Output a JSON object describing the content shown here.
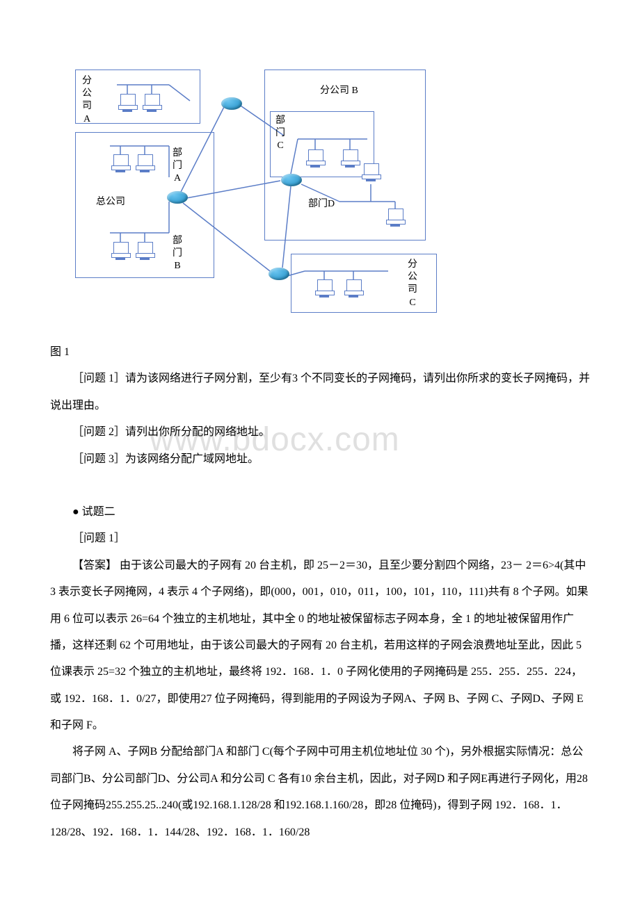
{
  "diagram": {
    "boxes": {
      "subA": {
        "label": "分\n公\n司\nA"
      },
      "hq": {
        "label": "总公司"
      },
      "deptA": {
        "label": "部\n门\nA"
      },
      "deptB": {
        "label": "部\n门\nB"
      },
      "subB": {
        "label": "分公司 B"
      },
      "deptC": {
        "label": "部\n门\nC"
      },
      "deptD": {
        "label": "部门D"
      },
      "subC": {
        "label": "分\n公\n司\nC"
      }
    },
    "colors": {
      "border": "#5b7dc7",
      "router_gradient_start": "#6bc5f0",
      "router_gradient_end": "#1a8bc2",
      "line": "#5b7dc7",
      "text": "#000000",
      "background": "#ffffff",
      "watermark": "#c8c8c8"
    }
  },
  "figure_label": "图 1",
  "questions": {
    "q1": "［问题 1］请为该网络进行子网分割，至少有3 个不同变长的子网掩码，请列出你所求的变长子网掩码，并说出理由。",
    "q2": "［问题 2］请列出你所分配的网络地址。",
    "q3": "［问题 3］为该网络分配广域网地址。"
  },
  "watermark": "www.bdocx.com",
  "section_title": "●  试题二",
  "answer_heading": "［问题 1］",
  "answer_paragraph1": "【答案】 由于该公司最大的子网有 20 台主机，即 25－2＝30，且至少要分割四个网络，23－ 2＝6>4(其中 3 表示变长子网掩网，4 表示 4 个子网络)，即(000，001，010，011，100，101，110，111)共有 8 个子网。如果用 6 位可以表示 26=64 个独立的主机地址，其中全 0 的地址被保留标志子网本身，全 1 的地址被保留用作广播，这样还剩 62 个可用地址，由于该公司最大的子网有 20 台主机，若用这样的子网会浪费地址至此，因此   5 位课表示 25=32 个独立的主机地址，最终将 192．168．1．0 子网化使用的子网掩码是 255．255．255．224，或 192．168．1．0/27，即使用27 位子网掩码，得到能用的子网设为子网A、子网 B、子网 C、子网D、子网 E 和子网 F。",
  "answer_paragraph2": "将子网 A、子网B 分配给部门A 和部门 C(每个子网中可用主机位地址位 30 个)，另外根据实际情况：总公司部门B、分公司部门D、分公司A 和分公司 C 各有10 余台主机，因此，对子网D 和子网E再进行子网化，用28 位子网掩码255.255.25..240(或192.168.1.128/28 和192.168.1.160/28，即28 位掩码)，得到子网 192．168．1．128/28、192．168．1．144/28、192．168．1．160/28"
}
